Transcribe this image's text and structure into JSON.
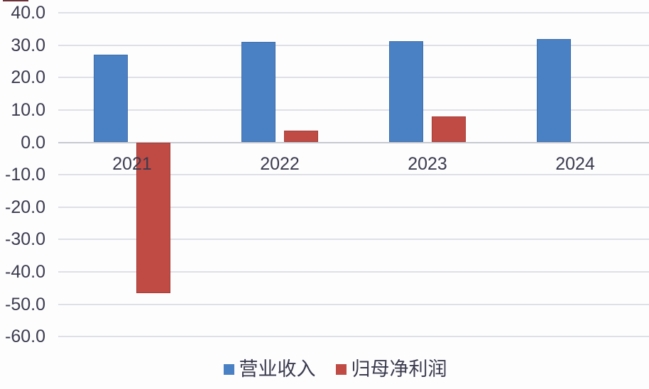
{
  "chart_data": {
    "type": "bar",
    "title": "",
    "xlabel": "",
    "ylabel": "",
    "categories": [
      "2021",
      "2022",
      "2023",
      "2024"
    ],
    "series": [
      {
        "name": "营业收入",
        "color": "#4a80c4",
        "border_color": "#3e6ea6",
        "values": [
          27.0,
          31.0,
          31.2,
          31.9
        ]
      },
      {
        "name": "归母净利润",
        "color": "#c04a44",
        "border_color": "#a33f39",
        "values": [
          -46.7,
          3.7,
          8.0,
          0.0
        ]
      }
    ],
    "ylim": [
      -60,
      40
    ],
    "yticks": [
      40,
      30,
      20,
      10,
      0,
      -10,
      -20,
      -30,
      -40,
      -50,
      -60
    ],
    "ytick_labels": [
      "40.0",
      "30.0",
      "20.0",
      "10.0",
      "0.0",
      "-10.0",
      "-20.0",
      "-30.0",
      "-40.0",
      "-50.0",
      "-60.0"
    ],
    "grid": true,
    "legend_position": "bottom"
  },
  "colors": {
    "background": "#fdfdfe",
    "gridline": "#dfe0e6",
    "zero_line": "#c7c9d1",
    "axis_text": "#3b3b4f"
  }
}
